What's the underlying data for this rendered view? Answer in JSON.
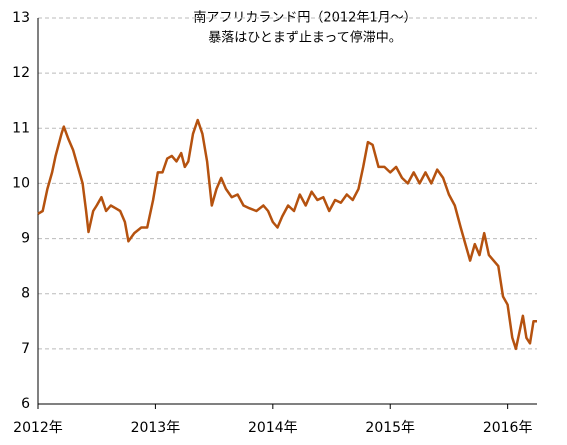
{
  "chart_data": {
    "type": "line",
    "title": [
      "南アフリカランド円（2012年1月～）",
      "暴落はひとまず止まって停滞中。"
    ],
    "x": [
      2012.0,
      2012.04,
      2012.08,
      2012.12,
      2012.15,
      2012.2,
      2012.22,
      2012.26,
      2012.3,
      2012.34,
      2012.38,
      2012.41,
      2012.43,
      2012.47,
      2012.5,
      2012.54,
      2012.58,
      2012.62,
      2012.66,
      2012.7,
      2012.74,
      2012.77,
      2012.82,
      2012.88,
      2012.93,
      2012.98,
      2013.02,
      2013.06,
      2013.1,
      2013.14,
      2013.18,
      2013.22,
      2013.25,
      2013.28,
      2013.32,
      2013.36,
      2013.4,
      2013.44,
      2013.48,
      2013.52,
      2013.56,
      2013.6,
      2013.65,
      2013.7,
      2013.75,
      2013.8,
      2013.86,
      2013.92,
      2013.96,
      2014.0,
      2014.04,
      2014.08,
      2014.13,
      2014.18,
      2014.23,
      2014.28,
      2014.33,
      2014.38,
      2014.43,
      2014.48,
      2014.53,
      2014.58,
      2014.63,
      2014.68,
      2014.73,
      2014.77,
      2014.81,
      2014.85,
      2014.9,
      2014.95,
      2015.0,
      2015.05,
      2015.1,
      2015.15,
      2015.2,
      2015.25,
      2015.3,
      2015.35,
      2015.4,
      2015.45,
      2015.5,
      2015.55,
      2015.6,
      2015.64,
      2015.68,
      2015.72,
      2015.76,
      2015.8,
      2015.84,
      2015.88,
      2015.92,
      2015.96,
      2016.0,
      2016.04,
      2016.07,
      2016.1,
      2016.13,
      2016.16,
      2016.19,
      2016.22,
      2016.25
    ],
    "series": [
      {
        "color": "#b5520f",
        "values": [
          9.45,
          9.5,
          9.9,
          10.2,
          10.5,
          10.9,
          11.03,
          10.8,
          10.6,
          10.3,
          10.0,
          9.5,
          9.12,
          9.5,
          9.6,
          9.75,
          9.5,
          9.6,
          9.55,
          9.5,
          9.3,
          8.95,
          9.1,
          9.2,
          9.2,
          9.7,
          10.2,
          10.2,
          10.45,
          10.5,
          10.4,
          10.55,
          10.3,
          10.4,
          10.9,
          11.15,
          10.9,
          10.4,
          9.6,
          9.9,
          10.1,
          9.9,
          9.75,
          9.8,
          9.6,
          9.55,
          9.5,
          9.6,
          9.5,
          9.3,
          9.2,
          9.4,
          9.6,
          9.5,
          9.8,
          9.6,
          9.85,
          9.7,
          9.75,
          9.5,
          9.7,
          9.65,
          9.8,
          9.7,
          9.9,
          10.3,
          10.75,
          10.7,
          10.3,
          10.3,
          10.2,
          10.3,
          10.1,
          10.0,
          10.2,
          10.0,
          10.2,
          10.0,
          10.25,
          10.1,
          9.8,
          9.6,
          9.2,
          8.9,
          8.6,
          8.9,
          8.7,
          9.1,
          8.7,
          8.6,
          8.5,
          7.95,
          7.8,
          7.2,
          7.0,
          7.3,
          7.6,
          7.2,
          7.1,
          7.5,
          7.5
        ]
      }
    ],
    "xlim": [
      2012.0,
      2016.25
    ],
    "xticks": [
      {
        "value": 2012,
        "label": "2012年"
      },
      {
        "value": 2013,
        "label": "2013年"
      },
      {
        "value": 2014,
        "label": "2014年"
      },
      {
        "value": 2015,
        "label": "2015年"
      },
      {
        "value": 2016,
        "label": "2016年"
      }
    ],
    "ylim": [
      6,
      13
    ],
    "yticks": [
      6,
      7,
      8,
      9,
      10,
      11,
      12,
      13
    ],
    "grid": true
  }
}
